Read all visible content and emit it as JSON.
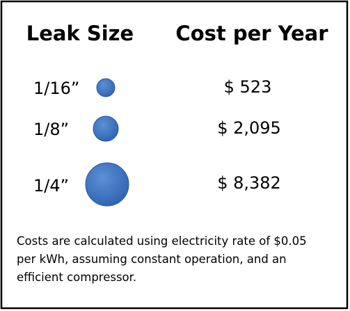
{
  "header": {
    "leak_size": "Leak Size",
    "cost": "Cost per Year"
  },
  "rows": [
    [
      "1/16”",
      "$ 523"
    ],
    [
      "1/8”",
      "$ 2,095"
    ],
    [
      "1/4”",
      "$ 8,382"
    ]
  ],
  "footnote": [
    "Costs are calculated using electricity rate of $0.05",
    "per kWh, assuming constant operation, and an",
    "efficient compressor."
  ]
}
